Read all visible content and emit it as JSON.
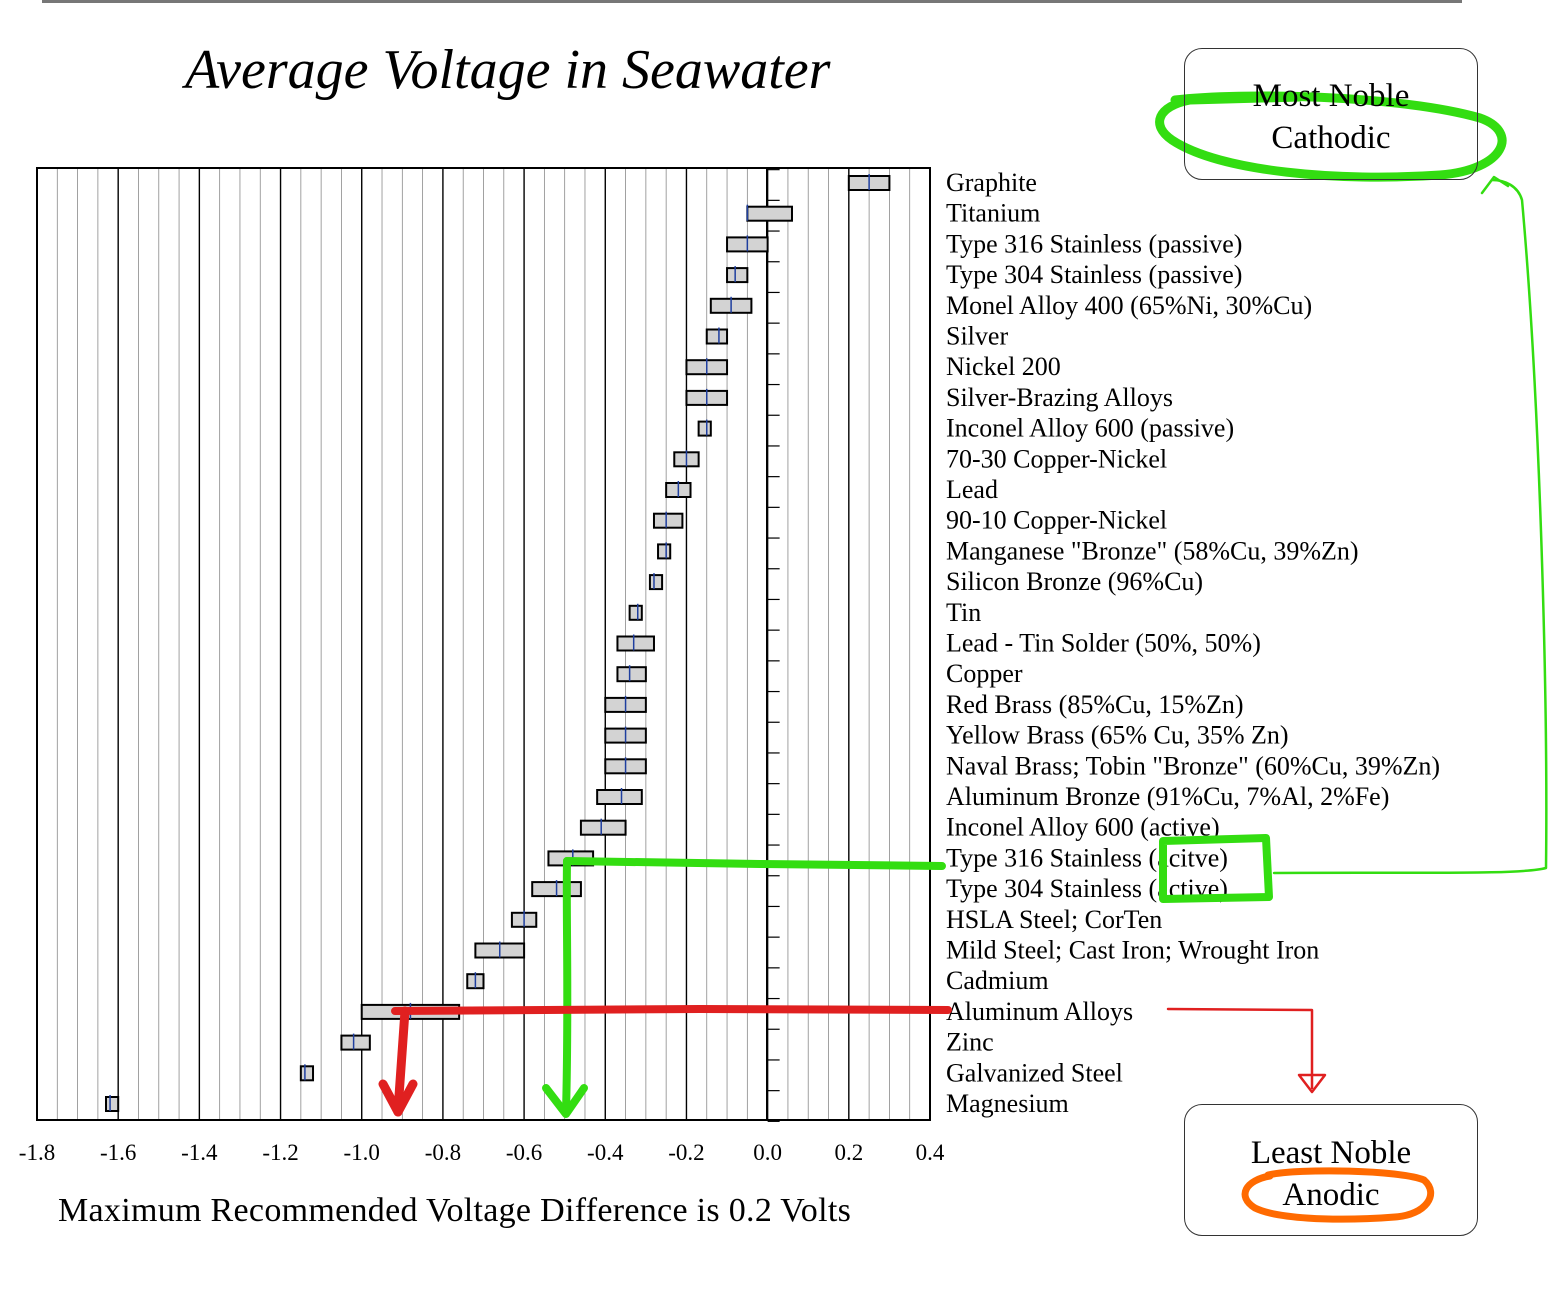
{
  "title": "Average Voltage in Seawater",
  "footer": "Maximum Recommended Voltage Difference is 0.2 Volts",
  "labels": {
    "most_noble_line1": "Most Noble",
    "most_noble_line2": "Cathodic",
    "least_noble_line1": "Least Noble",
    "least_noble_line2": "Anodic"
  },
  "colors": {
    "bar_fill": "#d3d3d3",
    "bar_stroke": "#000000",
    "mean_mark": "#1f3f9f",
    "annotation_green": "#33dd11",
    "annotation_red": "#e02020",
    "annotation_orange": "#ff6a00"
  },
  "chart_data": {
    "type": "bar",
    "orientation": "horizontal-range",
    "title": "Average Voltage in Seawater",
    "xlabel": "",
    "xlim": [
      -1.8,
      0.4
    ],
    "xticks": [
      -1.8,
      -1.6,
      -1.4,
      -1.2,
      -1.0,
      -0.8,
      -0.6,
      -0.4,
      -0.2,
      0.0,
      0.2,
      0.4
    ],
    "tick_labels": [
      "-1.8",
      "-1.6",
      "-1.4",
      "-1.2",
      "-1.0",
      "-0.8",
      "-0.6",
      "-0.4",
      "-0.2",
      "0.0",
      "0.2",
      "0.4"
    ],
    "grid": true,
    "series": [
      {
        "material": "Graphite",
        "low": 0.2,
        "high": 0.3,
        "mean": 0.25
      },
      {
        "material": "Titanium",
        "low": -0.05,
        "high": 0.06,
        "mean": -0.05
      },
      {
        "material": "Type 316 Stainless (passive)",
        "low": -0.1,
        "high": 0.0,
        "mean": -0.05
      },
      {
        "material": "Type 304 Stainless (passive)",
        "low": -0.1,
        "high": -0.05,
        "mean": -0.08
      },
      {
        "material": "Monel Alloy 400 (65%Ni, 30%Cu)",
        "low": -0.14,
        "high": -0.04,
        "mean": -0.09
      },
      {
        "material": "Silver",
        "low": -0.15,
        "high": -0.1,
        "mean": -0.12
      },
      {
        "material": "Nickel 200",
        "low": -0.2,
        "high": -0.1,
        "mean": -0.15
      },
      {
        "material": "Silver-Brazing Alloys",
        "low": -0.2,
        "high": -0.1,
        "mean": -0.15
      },
      {
        "material": "Inconel Alloy 600 (passive)",
        "low": -0.17,
        "high": -0.14,
        "mean": -0.15
      },
      {
        "material": "70-30 Copper-Nickel",
        "low": -0.23,
        "high": -0.17,
        "mean": -0.2
      },
      {
        "material": "Lead",
        "low": -0.25,
        "high": -0.19,
        "mean": -0.22
      },
      {
        "material": "90-10 Copper-Nickel",
        "low": -0.28,
        "high": -0.21,
        "mean": -0.25
      },
      {
        "material": "Manganese \"Bronze\"  (58%Cu, 39%Zn)",
        "low": -0.27,
        "high": -0.24,
        "mean": -0.25
      },
      {
        "material": "Silicon Bronze  (96%Cu)",
        "low": -0.29,
        "high": -0.26,
        "mean": -0.28
      },
      {
        "material": "Tin",
        "low": -0.34,
        "high": -0.31,
        "mean": -0.32
      },
      {
        "material": "Lead - Tin Solder  (50%, 50%)",
        "low": -0.37,
        "high": -0.28,
        "mean": -0.33
      },
      {
        "material": "Copper",
        "low": -0.37,
        "high": -0.3,
        "mean": -0.34
      },
      {
        "material": "Red Brass  (85%Cu, 15%Zn)",
        "low": -0.4,
        "high": -0.3,
        "mean": -0.35
      },
      {
        "material": "Yellow Brass  (65% Cu, 35% Zn)",
        "low": -0.4,
        "high": -0.3,
        "mean": -0.35
      },
      {
        "material": "Naval Brass;  Tobin \"Bronze\"  (60%Cu, 39%Zn)",
        "low": -0.4,
        "high": -0.3,
        "mean": -0.35
      },
      {
        "material": "Aluminum Bronze  (91%Cu, 7%Al, 2%Fe)",
        "low": -0.42,
        "high": -0.31,
        "mean": -0.36
      },
      {
        "material": "Inconel Alloy 600 (active)",
        "low": -0.46,
        "high": -0.35,
        "mean": -0.41
      },
      {
        "material": "Type 316 Stainless (acitve)",
        "low": -0.54,
        "high": -0.43,
        "mean": -0.48
      },
      {
        "material": "Type 304 Stainless (active)",
        "low": -0.58,
        "high": -0.46,
        "mean": -0.52
      },
      {
        "material": "HSLA Steel;  CorTen",
        "low": -0.63,
        "high": -0.57,
        "mean": -0.6
      },
      {
        "material": "Mild Steel;  Cast Iron;  Wrought Iron",
        "low": -0.72,
        "high": -0.6,
        "mean": -0.66
      },
      {
        "material": "Cadmium",
        "low": -0.74,
        "high": -0.7,
        "mean": -0.72
      },
      {
        "material": "Aluminum Alloys",
        "low": -1.0,
        "high": -0.76,
        "mean": -0.88
      },
      {
        "material": "Zinc",
        "low": -1.05,
        "high": -0.98,
        "mean": -1.02
      },
      {
        "material": "Galvanized Steel",
        "low": -1.15,
        "high": -1.12,
        "mean": -1.14
      },
      {
        "material": "Magnesium",
        "low": -1.63,
        "high": -1.6,
        "mean": -1.62
      }
    ]
  }
}
